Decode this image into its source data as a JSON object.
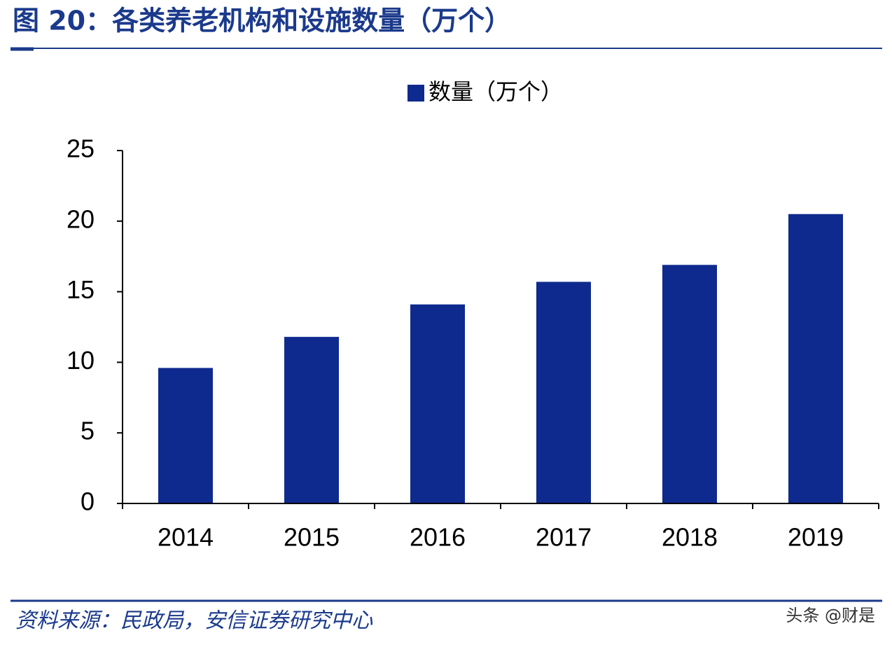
{
  "chart_data": {
    "type": "bar",
    "title": "图 20：各类养老机构和设施数量（万个）",
    "categories": [
      "2014",
      "2015",
      "2016",
      "2017",
      "2018",
      "2019"
    ],
    "series": [
      {
        "name": "数量（万个）",
        "color": "#0f2a8e",
        "values": [
          9.6,
          11.8,
          14.1,
          15.7,
          16.9,
          20.5
        ]
      }
    ],
    "ylim": [
      0,
      25
    ],
    "yticks": [
      0,
      5,
      10,
      15,
      20,
      25
    ],
    "grid": false,
    "legend": "top",
    "source": "资料来源：民政局，安信证券研究中心",
    "watermark": "头条 @财是"
  }
}
